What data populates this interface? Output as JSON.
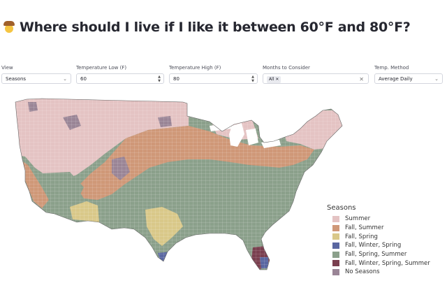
{
  "title": "Where should I live if I like it between 60°F and 80°F?",
  "title_icon": "cowboy-emoji-icon",
  "controls": {
    "view": {
      "label": "View",
      "value": "Seasons"
    },
    "temp_low": {
      "label": "Temperature Low (F)",
      "value": "60"
    },
    "temp_high": {
      "label": "Temperature High (F)",
      "value": "80"
    },
    "months": {
      "label": "Months to Consider",
      "tag": "All"
    },
    "method": {
      "label": "Temp. Method",
      "value": "Average Daily"
    }
  },
  "legend": {
    "title": "Seasons",
    "items": [
      {
        "label": "Summer",
        "color": "#e4c3c3"
      },
      {
        "label": "Fall, Summer",
        "color": "#cf9878"
      },
      {
        "label": "Fall, Spring",
        "color": "#d9c889"
      },
      {
        "label": "Fall, Winter, Spring",
        "color": "#5a67a1"
      },
      {
        "label": "Fall, Spring, Summer",
        "color": "#8ba08b"
      },
      {
        "label": "Fall, Winter, Spring, Summer",
        "color": "#7a3f4f"
      },
      {
        "label": "No Seasons",
        "color": "#9a8596"
      }
    ]
  }
}
